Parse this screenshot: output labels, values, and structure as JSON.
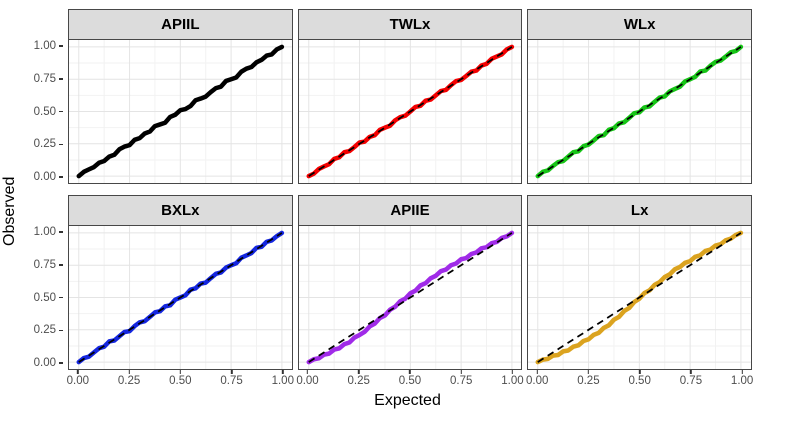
{
  "figure": {
    "background": "#ffffff",
    "x_axis_title": "Expected",
    "y_axis_title": "Observed"
  },
  "axes": {
    "x_tick_labels": [
      "0.00",
      "0.25",
      "0.50",
      "0.75",
      "1.00"
    ],
    "y_tick_labels": [
      "1.00",
      "0.75",
      "0.50",
      "0.25",
      "0.00"
    ],
    "tick_values": [
      0,
      0.25,
      0.5,
      0.75,
      1
    ],
    "minor_grid_values": [
      0.125,
      0.375,
      0.625,
      0.875
    ]
  },
  "style": {
    "strip_bg": "#dcdcdc",
    "strip_text_color": "#000000",
    "panel_bg": "#ffffff",
    "panel_border": "#474747",
    "grid_major": "#e4e4e4",
    "grid_minor": "#f2f2f2",
    "tick_label_color": "#4d4d4d",
    "reference_line_color": "#000000"
  },
  "chart_data": {
    "type": "line",
    "title": "",
    "xlabel": "Expected",
    "ylabel": "Observed",
    "xlim": [
      0,
      1
    ],
    "ylim": [
      0,
      1
    ],
    "grid": "on",
    "legend": "none",
    "facet_layout": {
      "rows": 2,
      "cols": 3
    },
    "facet_order": [
      "APIIL",
      "TWLx",
      "WLx",
      "BXLx",
      "APIIE",
      "Lx"
    ],
    "reference_line": {
      "type": "diagonal-identity",
      "style": "dashed",
      "color": "#000000",
      "from": [
        0,
        0
      ],
      "to": [
        1,
        1
      ]
    },
    "x": [
      0,
      0.025,
      0.05,
      0.075,
      0.1,
      0.125,
      0.15,
      0.175,
      0.2,
      0.225,
      0.25,
      0.275,
      0.3,
      0.325,
      0.35,
      0.375,
      0.4,
      0.425,
      0.45,
      0.475,
      0.5,
      0.525,
      0.55,
      0.575,
      0.6,
      0.625,
      0.65,
      0.675,
      0.7,
      0.725,
      0.75,
      0.775,
      0.8,
      0.825,
      0.85,
      0.875,
      0.9,
      0.925,
      0.95,
      0.975,
      1
    ],
    "series": [
      {
        "name": "APIIL",
        "color": "#000000",
        "values": [
          0.0,
          0.033,
          0.052,
          0.07,
          0.103,
          0.117,
          0.15,
          0.165,
          0.208,
          0.228,
          0.24,
          0.281,
          0.294,
          0.33,
          0.345,
          0.387,
          0.4,
          0.413,
          0.458,
          0.475,
          0.51,
          0.519,
          0.542,
          0.587,
          0.6,
          0.615,
          0.65,
          0.681,
          0.692,
          0.737,
          0.75,
          0.763,
          0.808,
          0.831,
          0.844,
          0.881,
          0.9,
          0.933,
          0.942,
          0.981,
          1.0
        ]
      },
      {
        "name": "TWLx",
        "color": "#f40000",
        "values": [
          0.0,
          0.019,
          0.056,
          0.075,
          0.092,
          0.133,
          0.146,
          0.185,
          0.194,
          0.225,
          0.26,
          0.267,
          0.304,
          0.317,
          0.358,
          0.375,
          0.39,
          0.431,
          0.456,
          0.467,
          0.5,
          0.535,
          0.544,
          0.583,
          0.592,
          0.625,
          0.658,
          0.667,
          0.704,
          0.735,
          0.744,
          0.775,
          0.808,
          0.817,
          0.856,
          0.869,
          0.908,
          0.925,
          0.942,
          0.981,
          1.0
        ]
      },
      {
        "name": "WLx",
        "color": "#16c516",
        "values": [
          0.0,
          0.033,
          0.044,
          0.079,
          0.108,
          0.117,
          0.15,
          0.185,
          0.192,
          0.231,
          0.244,
          0.275,
          0.31,
          0.317,
          0.358,
          0.371,
          0.408,
          0.417,
          0.45,
          0.487,
          0.494,
          0.531,
          0.54,
          0.575,
          0.608,
          0.617,
          0.656,
          0.675,
          0.692,
          0.733,
          0.75,
          0.769,
          0.81,
          0.817,
          0.854,
          0.883,
          0.894,
          0.925,
          0.958,
          0.969,
          1.0
        ]
      },
      {
        "name": "BXLx",
        "color": "#1426e0",
        "values": [
          0.0,
          0.031,
          0.042,
          0.075,
          0.108,
          0.119,
          0.16,
          0.167,
          0.2,
          0.233,
          0.24,
          0.279,
          0.308,
          0.317,
          0.35,
          0.385,
          0.394,
          0.431,
          0.44,
          0.483,
          0.5,
          0.517,
          0.56,
          0.571,
          0.608,
          0.615,
          0.65,
          0.683,
          0.694,
          0.731,
          0.75,
          0.765,
          0.808,
          0.825,
          0.844,
          0.885,
          0.892,
          0.931,
          0.942,
          0.975,
          1.0
        ]
      },
      {
        "name": "APIIE",
        "color": "#a02be8",
        "values": [
          0.0,
          0.022,
          0.03,
          0.058,
          0.066,
          0.097,
          0.106,
          0.139,
          0.152,
          0.19,
          0.21,
          0.234,
          0.276,
          0.298,
          0.341,
          0.361,
          0.405,
          0.428,
          0.471,
          0.491,
          0.533,
          0.553,
          0.594,
          0.611,
          0.649,
          0.668,
          0.704,
          0.716,
          0.75,
          0.763,
          0.796,
          0.805,
          0.837,
          0.849,
          0.881,
          0.889,
          0.92,
          0.93,
          0.961,
          0.973,
          1.0
        ]
      },
      {
        "name": "Lx",
        "color": "#dba31f",
        "values": [
          0.0,
          0.019,
          0.025,
          0.05,
          0.055,
          0.083,
          0.09,
          0.119,
          0.13,
          0.163,
          0.176,
          0.211,
          0.226,
          0.265,
          0.285,
          0.328,
          0.35,
          0.395,
          0.419,
          0.465,
          0.491,
          0.534,
          0.555,
          0.598,
          0.619,
          0.659,
          0.68,
          0.719,
          0.736,
          0.769,
          0.782,
          0.815,
          0.827,
          0.86,
          0.871,
          0.902,
          0.912,
          0.943,
          0.955,
          0.984,
          1.0
        ]
      }
    ]
  }
}
